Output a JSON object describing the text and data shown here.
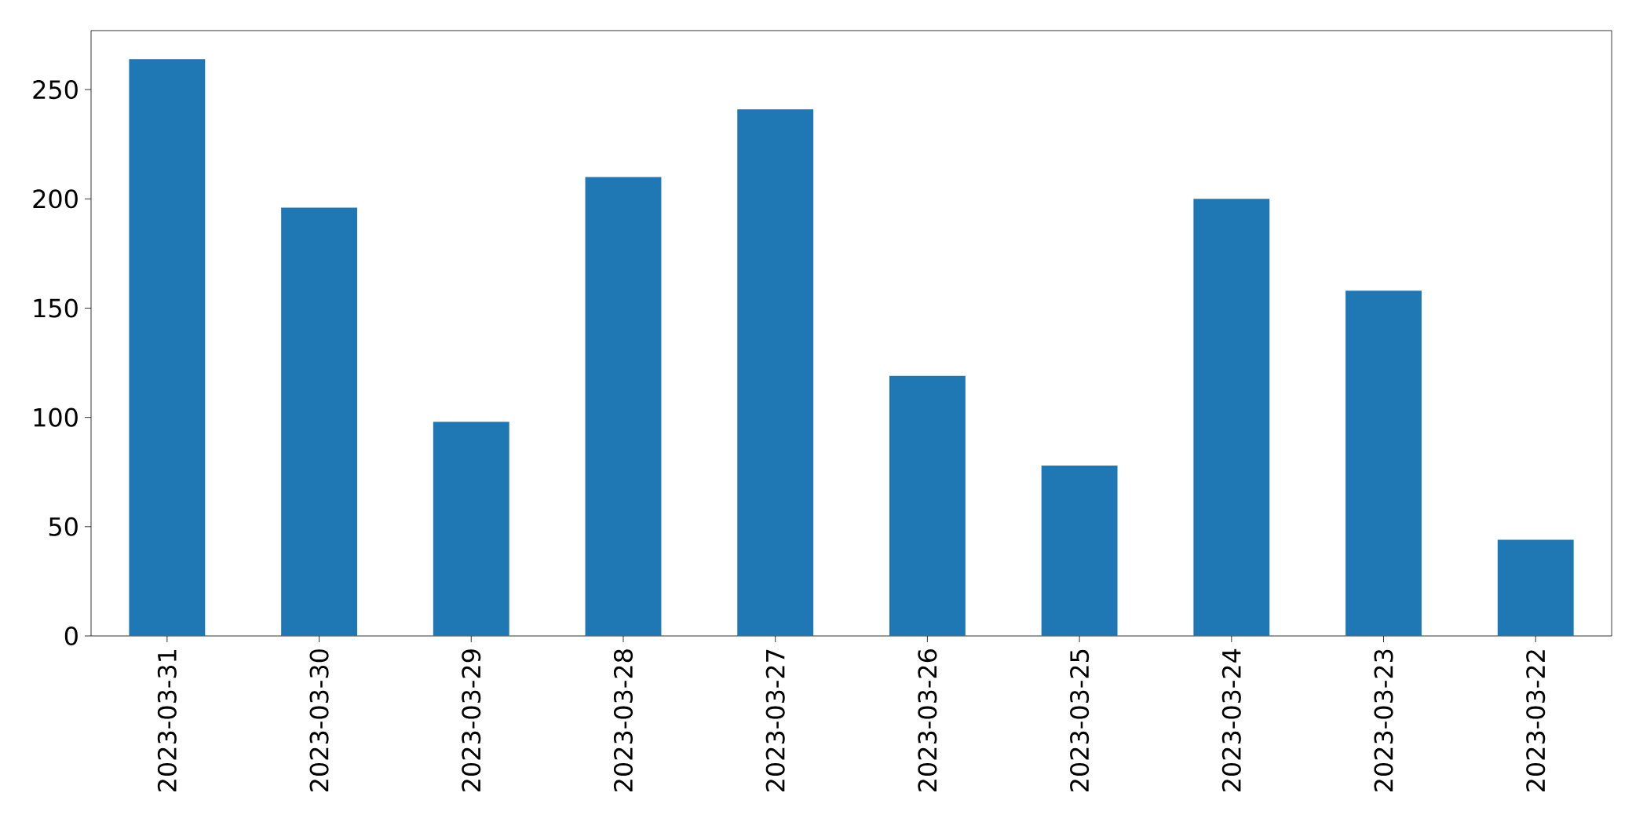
{
  "chart_data": {
    "type": "bar",
    "categories": [
      "2023-03-31",
      "2023-03-30",
      "2023-03-29",
      "2023-03-28",
      "2023-03-27",
      "2023-03-26",
      "2023-03-25",
      "2023-03-24",
      "2023-03-23",
      "2023-03-22"
    ],
    "values": [
      264,
      196,
      98,
      210,
      241,
      119,
      78,
      200,
      158,
      44
    ],
    "color": "#1f77b4",
    "ylim": [
      0,
      277
    ],
    "yticks": [
      0,
      50,
      100,
      150,
      200,
      250
    ]
  }
}
